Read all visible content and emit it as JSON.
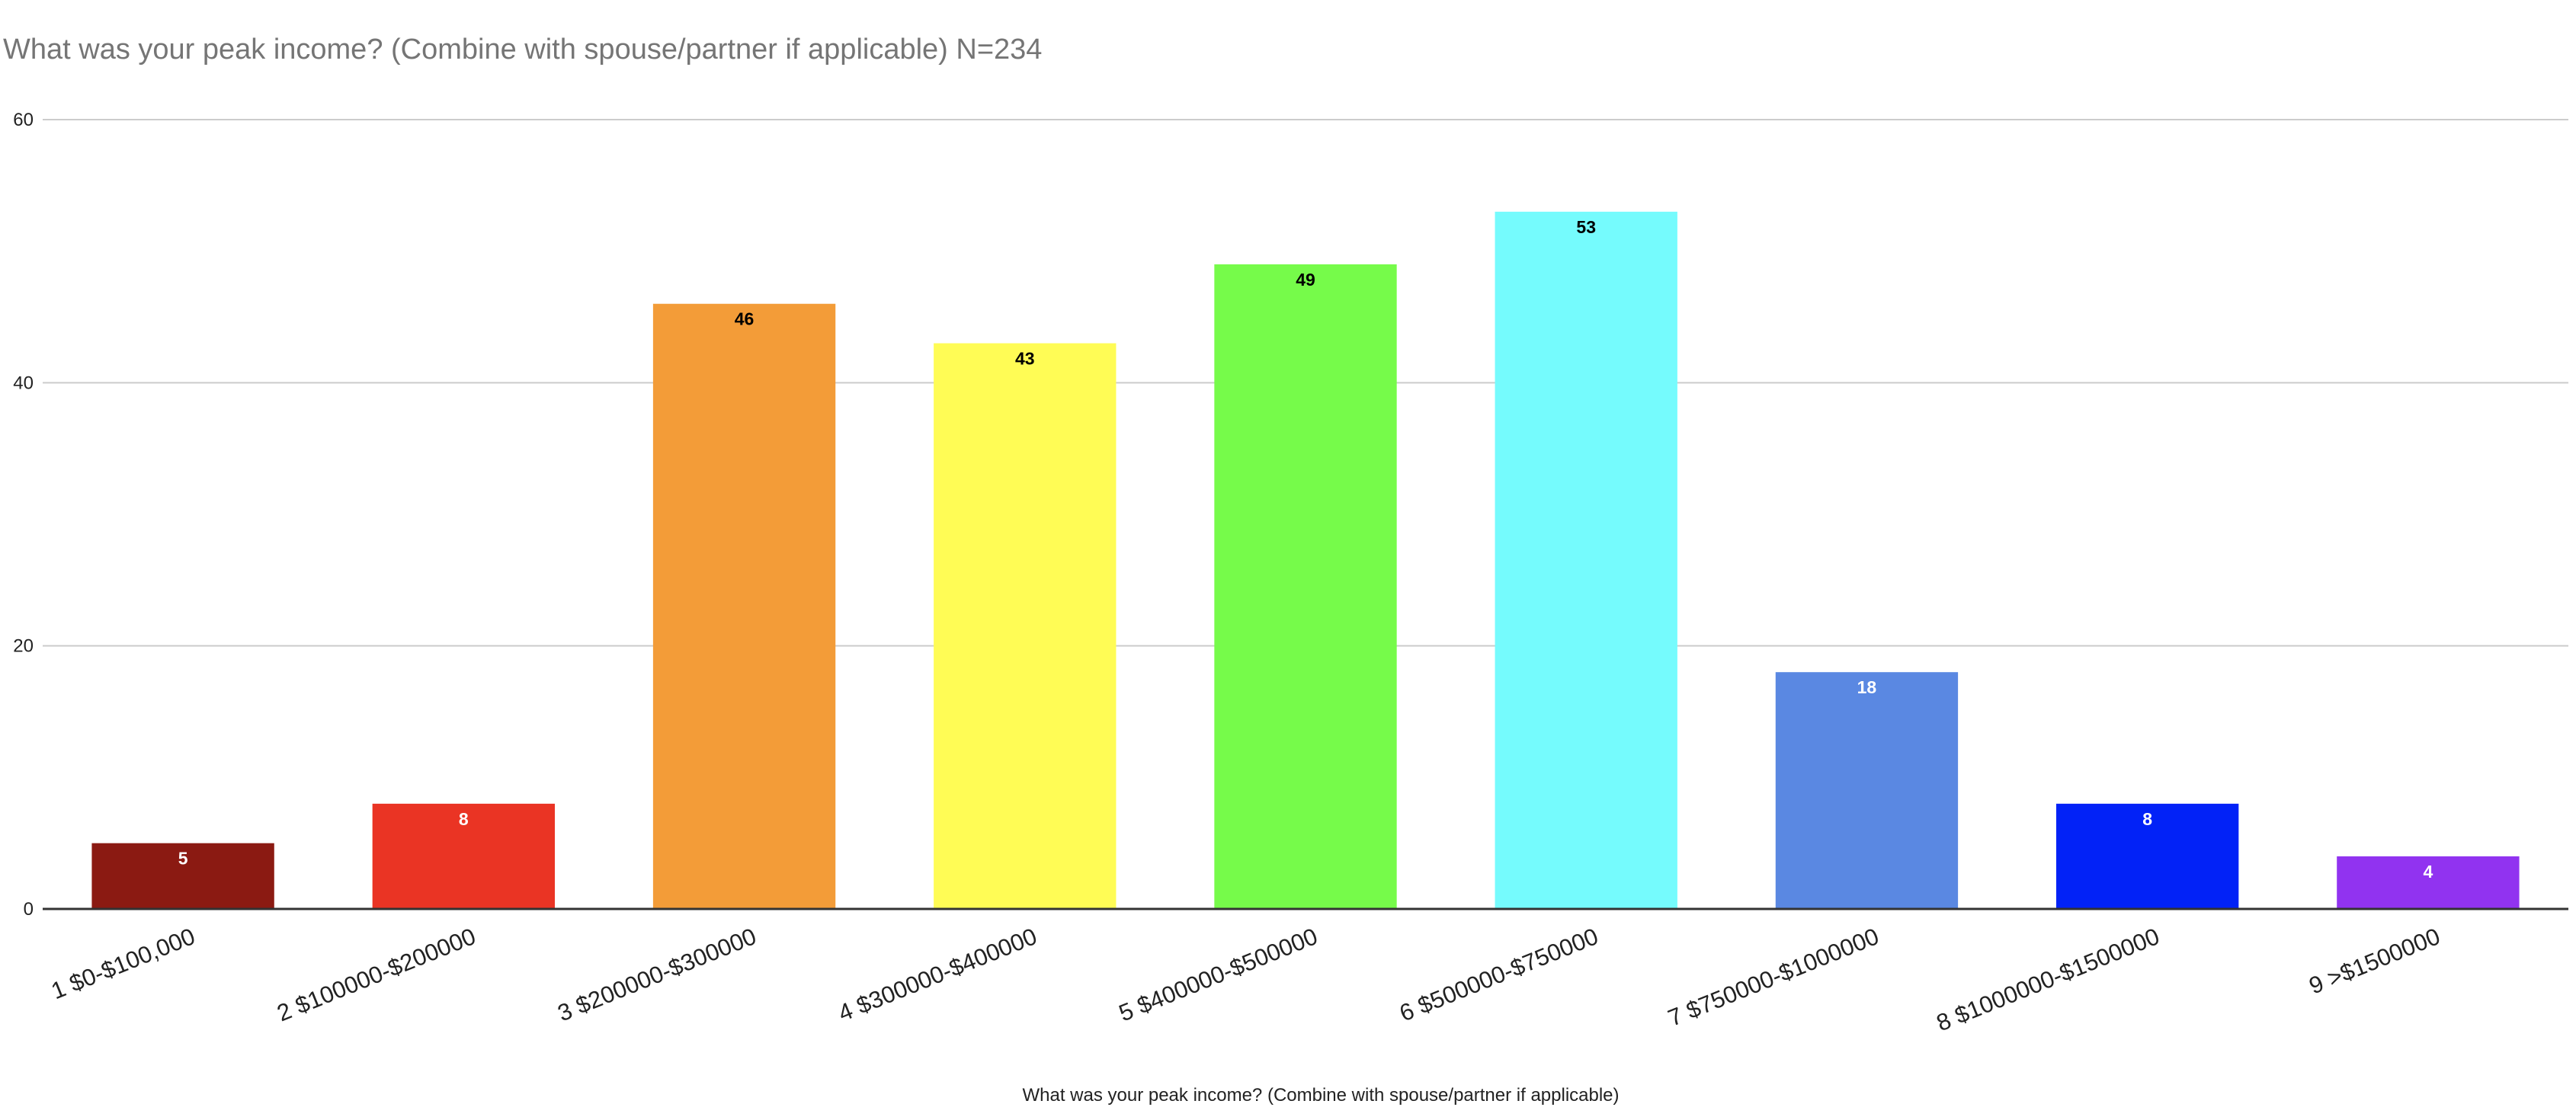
{
  "chart_data": {
    "type": "bar",
    "title": "What was your peak income? (Combine with spouse/partner if applicable) N=234",
    "xlabel": "What was your peak income? (Combine with spouse/partner if applicable)",
    "ylabel": "",
    "categories": [
      "1 $0-$100,000",
      "2 $100000-$200000",
      "3 $200000-$300000",
      "4 $300000-$400000",
      "5 $400000-$500000",
      "6 $500000-$750000",
      "7 $750000-$1000000",
      "8 $1000000-$1500000",
      "9 >$1500000"
    ],
    "values": [
      5,
      8,
      46,
      43,
      49,
      53,
      18,
      8,
      4
    ],
    "colors": [
      "#8b1a12",
      "#ea3424",
      "#f39c38",
      "#fffc55",
      "#76fb4a",
      "#75fbfd",
      "#5a88e2",
      "#0222f7",
      "#9133f0"
    ],
    "label_colors": [
      "#ffffff",
      "#ffffff",
      "#000000",
      "#000000",
      "#000000",
      "#000000",
      "#ffffff",
      "#ffffff",
      "#ffffff"
    ],
    "ylim": [
      0,
      60
    ],
    "yticks": [
      0,
      20,
      40,
      60
    ],
    "grid": true,
    "legend": "none"
  }
}
